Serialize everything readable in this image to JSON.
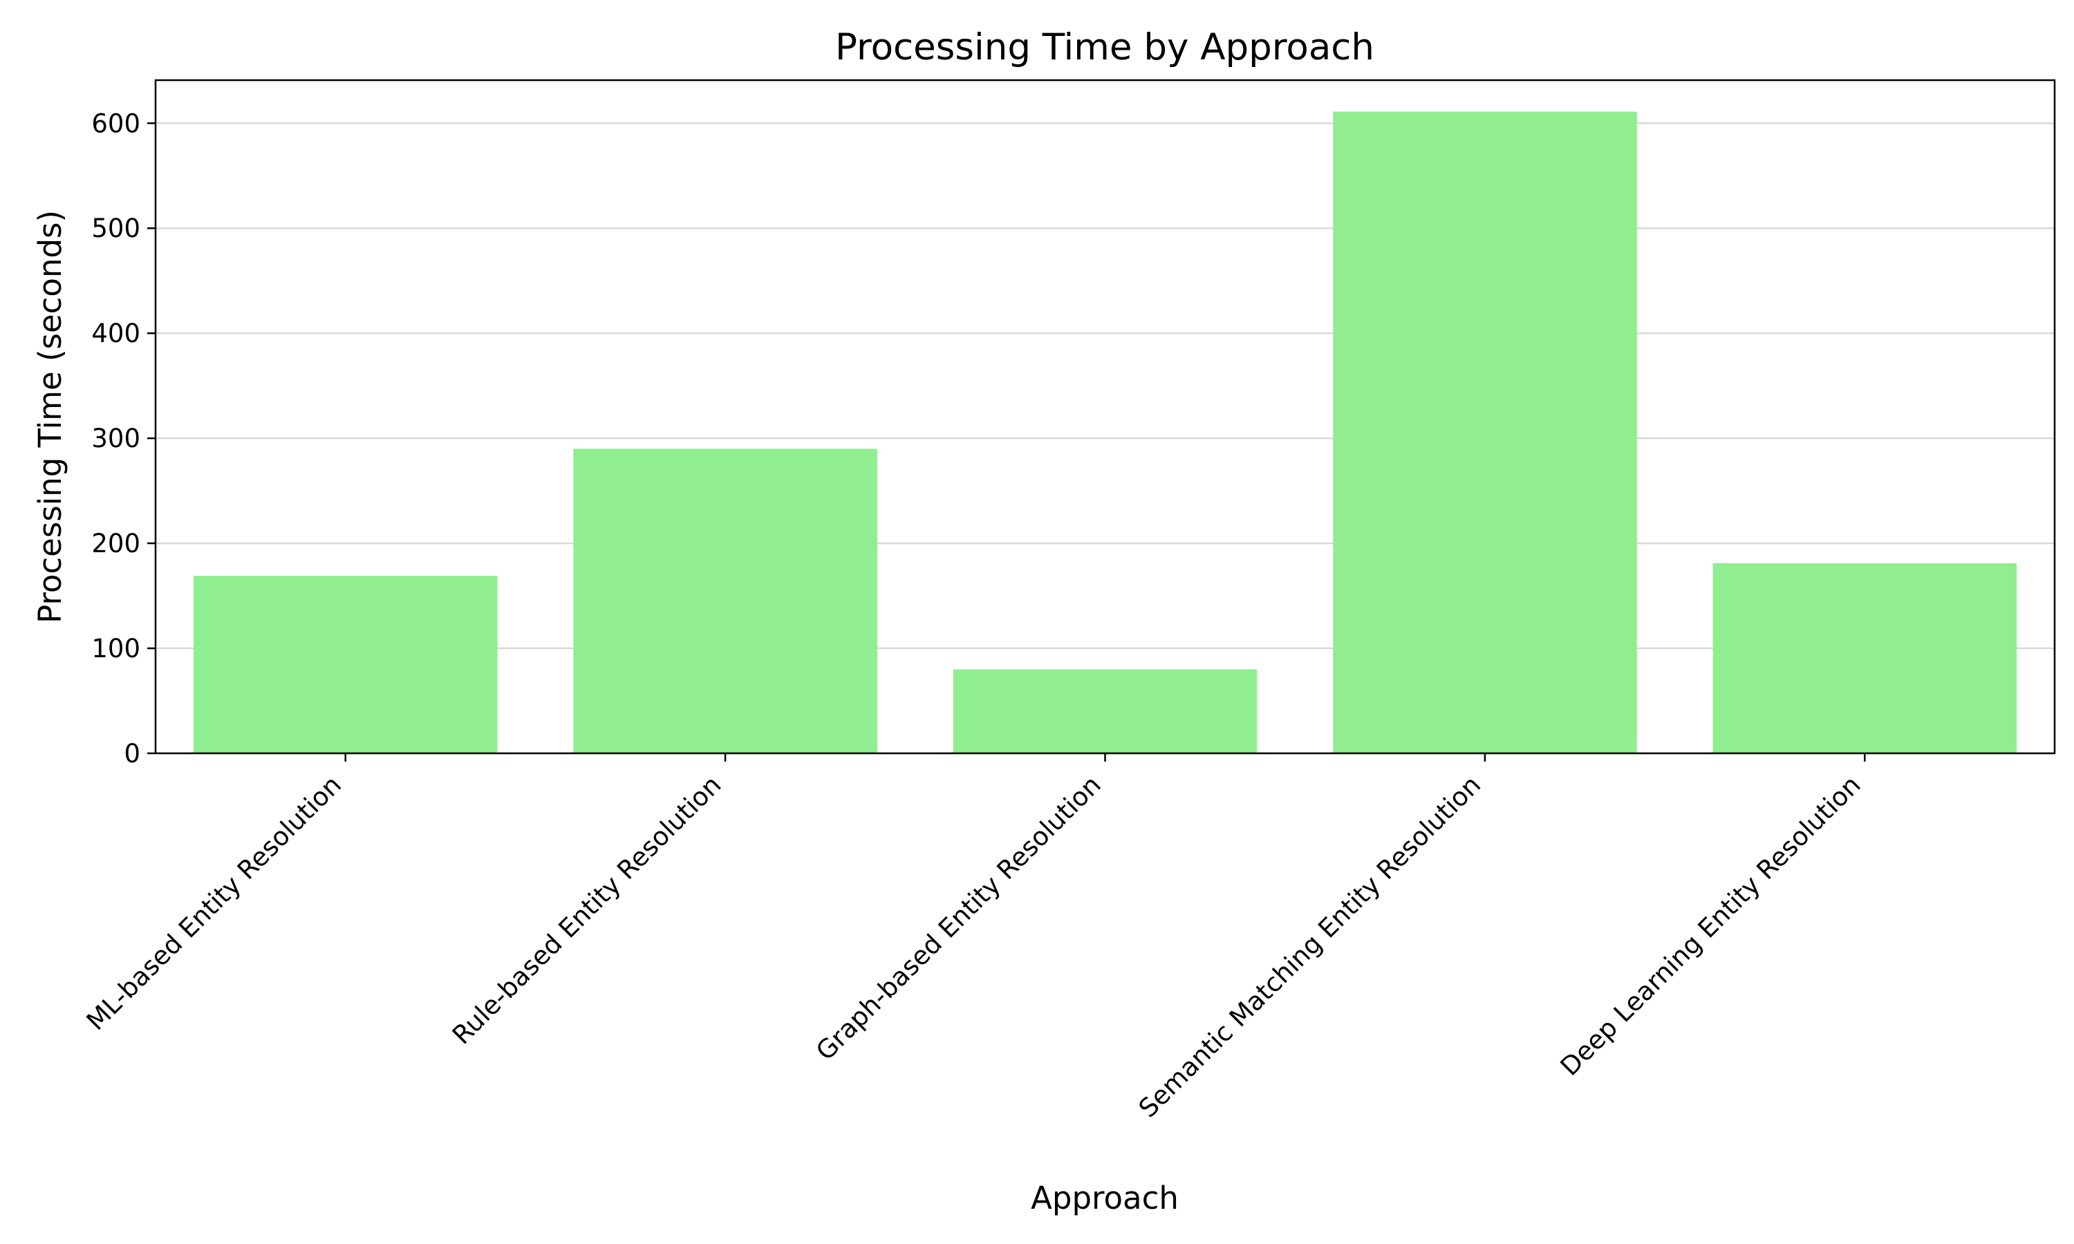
{
  "chart_data": {
    "type": "bar",
    "title": "Processing Time by Approach",
    "xlabel": "Approach",
    "ylabel": "Processing Time (seconds)",
    "categories": [
      "ML-based Entity Resolution",
      "Rule-based Entity Resolution",
      "Graph-based Entity Resolution",
      "Semantic Matching Entity Resolution",
      "Deep Learning Entity Resolution"
    ],
    "values": [
      169,
      290,
      80,
      611,
      181
    ],
    "ylim": [
      0,
      641
    ],
    "yticks": [
      0,
      100,
      200,
      300,
      400,
      500,
      600
    ],
    "grid": true,
    "bar_color": "#90ee90"
  }
}
